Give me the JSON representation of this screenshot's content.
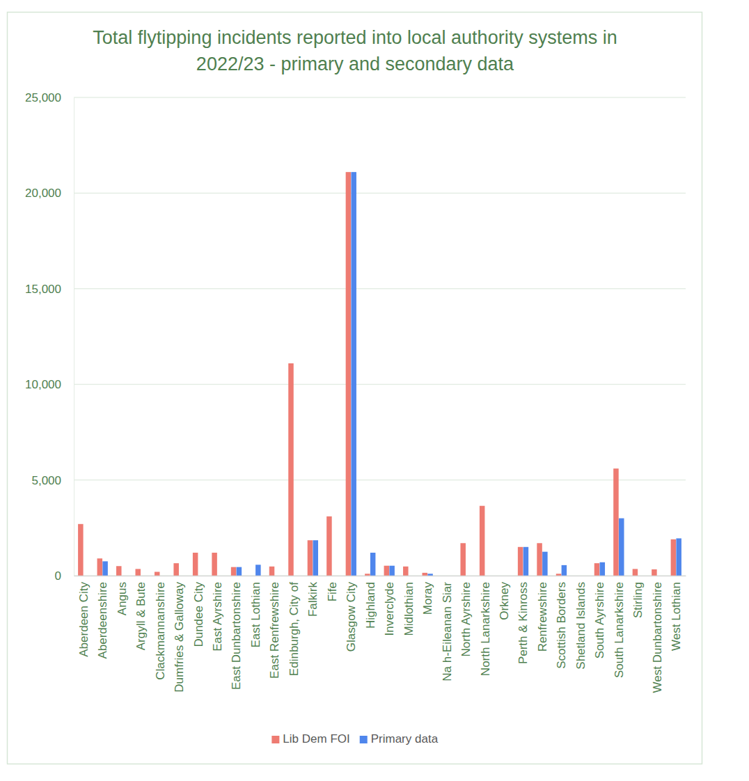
{
  "chart_data": {
    "type": "bar",
    "title": "Total flytipping incidents reported into local authority systems in 2022/23 - primary and secondary data",
    "categories": [
      "Aberdeen City",
      "Aberdeenshire",
      "Angus",
      "Argyll & Bute",
      "Clackmannanshire",
      "Dumfries & Galloway",
      "Dundee City",
      "East Ayrshire",
      "East Dunbartonshire",
      "East Lothian",
      "East Renfrewshire",
      "Edinburgh, City of",
      "Falkirk",
      "Fife",
      "Glasgow City",
      "Highland",
      "Inverclyde",
      "Midlothian",
      "Moray",
      "Na h-Eileanan Siar",
      "North Ayrshire",
      "North Lanarkshire",
      "Orkney",
      "Perth & Kinross",
      "Renfrewshire",
      "Scottish Borders",
      "Shetland Islands",
      "South Ayrshire",
      "South Lanarkshire",
      "Stirling",
      "West Dunbartonshire",
      "West Lothian"
    ],
    "series": [
      {
        "name": "Lib Dem FOI",
        "color": "#ee7b72",
        "values": [
          2700,
          900,
          500,
          350,
          200,
          650,
          1200,
          1200,
          450,
          0,
          480,
          11100,
          1850,
          3100,
          21100,
          100,
          520,
          480,
          150,
          0,
          1700,
          3650,
          0,
          1500,
          1700,
          100,
          0,
          650,
          5600,
          350,
          330,
          1900
        ]
      },
      {
        "name": "Primary data",
        "color": "#4f86ec",
        "values": [
          0,
          750,
          0,
          0,
          0,
          0,
          0,
          0,
          450,
          570,
          0,
          0,
          1850,
          0,
          21100,
          1200,
          520,
          0,
          100,
          0,
          0,
          0,
          0,
          1500,
          1250,
          550,
          0,
          700,
          3000,
          0,
          0,
          1950
        ]
      }
    ],
    "ylim": [
      0,
      25000
    ],
    "yticks": [
      0,
      {
        "value": 5000,
        "label": "5,000"
      },
      {
        "value": 10000,
        "label": "10,000"
      },
      {
        "value": 15000,
        "label": "15,000"
      },
      {
        "value": 20000,
        "label": "20,000"
      },
      {
        "value": 25000,
        "label": "25,000"
      }
    ],
    "grid": true,
    "legend": "bottom"
  }
}
